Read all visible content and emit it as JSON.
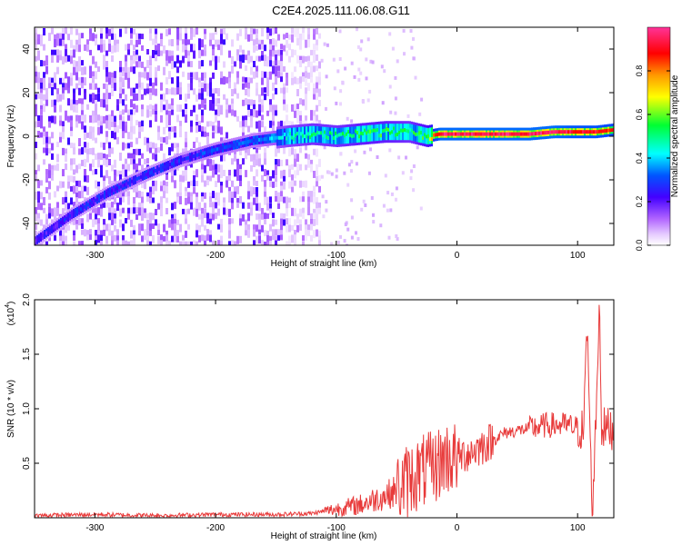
{
  "title": "C2E4.2025.111.06.08.G11",
  "chart_data": [
    {
      "type": "heatmap",
      "xlabel": "Height of straight line (km)",
      "ylabel": "Frequency (Hz)",
      "xlim": [
        -350,
        130
      ],
      "ylim": [
        -50,
        50
      ],
      "xticks": [
        -300,
        -200,
        -100,
        0,
        100
      ],
      "yticks": [
        -40,
        -20,
        0,
        20,
        40
      ],
      "colorbar": {
        "label": "Normalized spectral amplitude",
        "range": [
          0,
          1
        ],
        "ticks": [
          "0.0",
          "0.2",
          "0.4",
          "0.6",
          "0.8"
        ],
        "colors": [
          "#ffffff",
          "#d9b3ff",
          "#8a2be2",
          "#0000ff",
          "#00ffff",
          "#00ff00",
          "#ffff00",
          "#ff8000",
          "#ff0000",
          "#ff3399"
        ]
      },
      "ridge": {
        "x": [
          -350,
          -320,
          -290,
          -260,
          -230,
          -200,
          -170,
          -140,
          -120,
          -100,
          -80,
          -60,
          -40,
          -25,
          -15,
          0,
          20,
          40,
          60,
          80,
          100,
          115,
          130
        ],
        "y": [
          -48,
          -36,
          -26,
          -18,
          -11,
          -6,
          -2,
          0,
          1,
          0,
          1,
          2,
          2,
          0,
          1,
          1,
          1,
          1,
          1,
          2,
          2,
          2,
          3
        ],
        "amplitude": [
          0.2,
          0.25,
          0.25,
          0.25,
          0.25,
          0.3,
          0.3,
          0.45,
          0.5,
          0.5,
          0.55,
          0.55,
          0.5,
          0.6,
          0.95,
          0.95,
          0.95,
          0.95,
          0.95,
          0.95,
          0.9,
          0.9,
          0.85
        ]
      },
      "noise_region_xlim": [
        -350,
        -113
      ]
    },
    {
      "type": "line",
      "xlabel": "Height of straight line (km)",
      "ylabel": "SNR (10 * v/v)",
      "yscale_label": "(x10",
      "yscale_exp": "4",
      "xlim": [
        -350,
        130
      ],
      "ylim": [
        0,
        2.0
      ],
      "xticks": [
        -300,
        -200,
        -100,
        0,
        100
      ],
      "yticks": [
        "0.5",
        "1.0",
        "1.5",
        "2.0"
      ],
      "line_color": "#e83a3a",
      "x": [
        -350,
        -300,
        -250,
        -200,
        -150,
        -120,
        -100,
        -80,
        -60,
        -50,
        -40,
        -30,
        -20,
        -10,
        0,
        10,
        20,
        40,
        60,
        75,
        90,
        100,
        105,
        108,
        112,
        115,
        118,
        120,
        130
      ],
      "y": [
        0.02,
        0.03,
        0.02,
        0.03,
        0.03,
        0.04,
        0.08,
        0.12,
        0.2,
        0.25,
        0.35,
        0.42,
        0.45,
        0.55,
        0.55,
        0.6,
        0.65,
        0.78,
        0.82,
        0.85,
        0.85,
        0.82,
        0.8,
        1.78,
        0.05,
        0.82,
        2.0,
        0.82,
        0.82
      ]
    }
  ]
}
